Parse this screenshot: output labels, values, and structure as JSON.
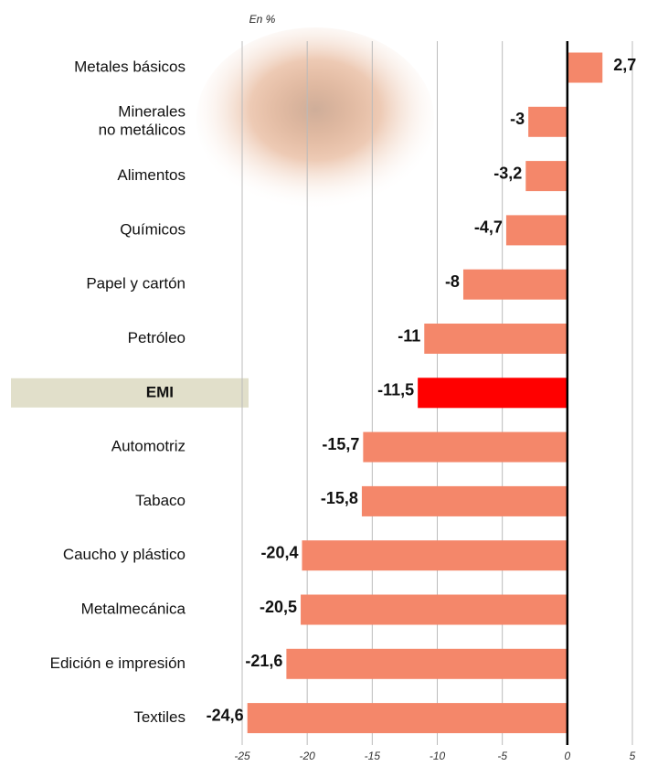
{
  "chart_data": {
    "type": "hbar",
    "subtitle": "En %",
    "categories": [
      "Metales básicos",
      "Minerales\nno metálicos",
      "Alimentos",
      "Químicos",
      "Papel y cartón",
      "Petróleo",
      "EMI",
      "Automotriz",
      "Tabaco",
      "Caucho y plástico",
      "Metalmecánica",
      "Edición e impresión",
      "Textiles"
    ],
    "values": [
      2.7,
      -3,
      -3.2,
      -4.7,
      -8,
      -11,
      -11.5,
      -15.7,
      -15.8,
      -20.4,
      -20.5,
      -21.6,
      -24.6
    ],
    "value_labels": [
      "2,7",
      "-3",
      "-3,2",
      "-4,7",
      "-8",
      "-11",
      "-11,5",
      "-15,7",
      "-15,8",
      "-20,4",
      "-20,5",
      "-21,6",
      "-24,6"
    ],
    "colors": [
      "#f4876a",
      "#f4876a",
      "#f4876a",
      "#f4876a",
      "#f4876a",
      "#f4876a",
      "#ff0000",
      "#f4876a",
      "#f4876a",
      "#f4876a",
      "#f4876a",
      "#f4876a",
      "#f4876a"
    ],
    "highlight": {
      "index": 6,
      "label_background": "#e1dfca"
    },
    "xlim": [
      -25,
      5
    ],
    "xticks": [
      -25,
      -20,
      -15,
      -10,
      -5,
      0,
      5
    ],
    "grid": true
  }
}
